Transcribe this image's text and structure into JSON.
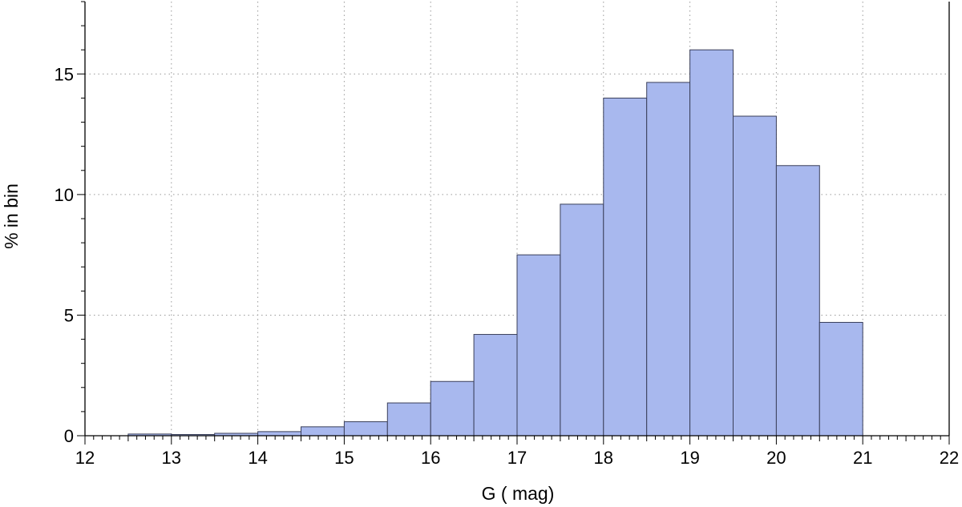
{
  "chart_data": {
    "type": "bar",
    "title": "",
    "xlabel": "G ( mag)",
    "ylabel": "% in bin",
    "xlim": [
      12,
      22
    ],
    "ylim": [
      0,
      18
    ],
    "grid": true,
    "bin_width": 0.5,
    "bar_color": "#a8b8ee",
    "edge_color": "#3a3f5a",
    "bins": [
      {
        "x0": 12.5,
        "x1": 13.0,
        "value": 0.07
      },
      {
        "x0": 13.0,
        "x1": 13.5,
        "value": 0.05
      },
      {
        "x0": 13.5,
        "x1": 14.0,
        "value": 0.1
      },
      {
        "x0": 14.0,
        "x1": 14.5,
        "value": 0.17
      },
      {
        "x0": 14.5,
        "x1": 15.0,
        "value": 0.37
      },
      {
        "x0": 15.0,
        "x1": 15.5,
        "value": 0.58
      },
      {
        "x0": 15.5,
        "x1": 16.0,
        "value": 1.36
      },
      {
        "x0": 16.0,
        "x1": 16.5,
        "value": 2.25
      },
      {
        "x0": 16.5,
        "x1": 17.0,
        "value": 4.2
      },
      {
        "x0": 17.0,
        "x1": 17.5,
        "value": 7.5
      },
      {
        "x0": 17.5,
        "x1": 18.0,
        "value": 9.6
      },
      {
        "x0": 18.0,
        "x1": 18.5,
        "value": 14.0
      },
      {
        "x0": 18.5,
        "x1": 19.0,
        "value": 14.65
      },
      {
        "x0": 19.0,
        "x1": 19.5,
        "value": 16.0
      },
      {
        "x0": 19.5,
        "x1": 20.0,
        "value": 13.25
      },
      {
        "x0": 20.0,
        "x1": 20.5,
        "value": 11.2
      },
      {
        "x0": 20.5,
        "x1": 21.0,
        "value": 4.7
      }
    ],
    "x_ticks": [
      "12",
      "13",
      "14",
      "15",
      "16",
      "17",
      "18",
      "19",
      "20",
      "21",
      "22"
    ],
    "y_ticks": [
      "0",
      "5",
      "10",
      "15"
    ]
  }
}
